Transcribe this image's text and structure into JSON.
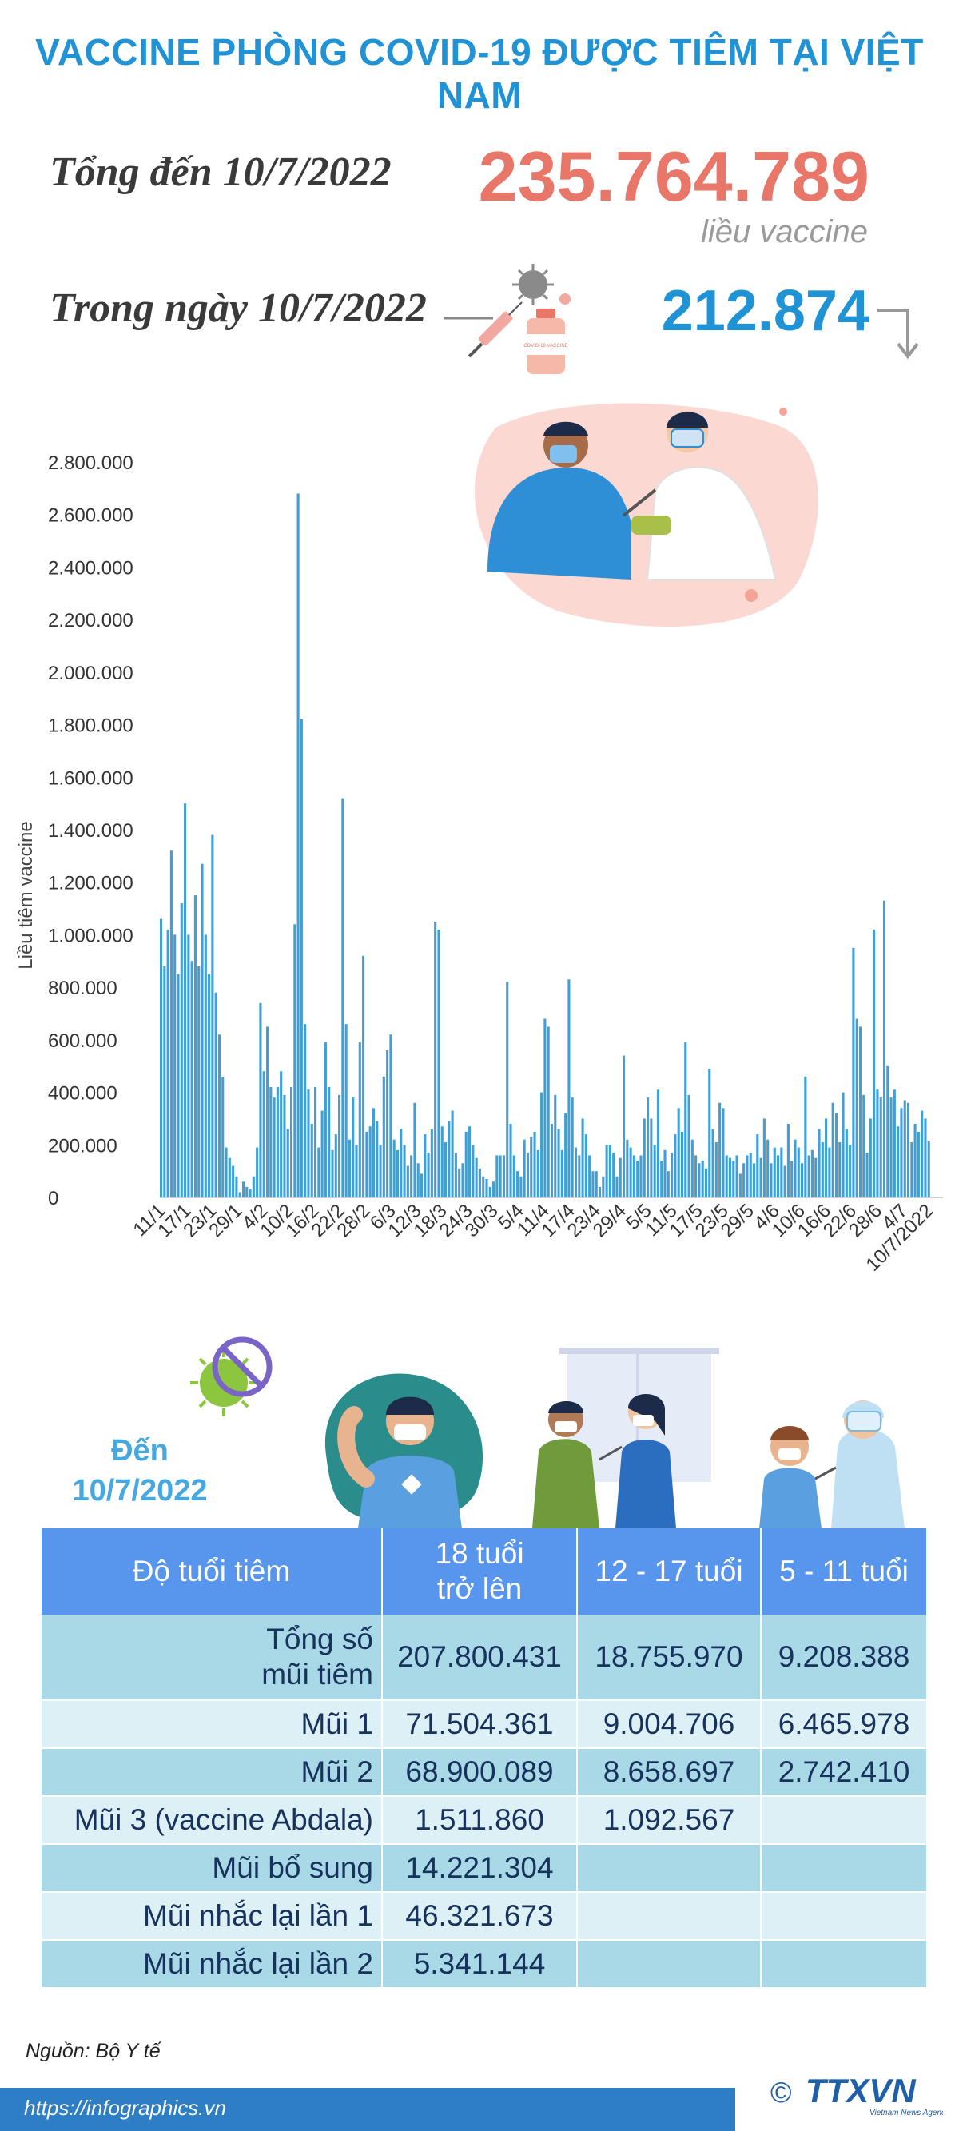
{
  "header": {
    "title": "VACCINE PHÒNG COVID-19 ĐƯỢC TIÊM TẠI VIỆT NAM",
    "total_label": "Tổng đến 10/7/2022",
    "total_value": "235.764.789",
    "total_unit": "liều vaccine",
    "day_label": "Trong ngày 10/7/2022",
    "day_value": "212.874",
    "day_trend_icon": "arrow-down-icon",
    "vial_label": "COVID-19 VACCINE"
  },
  "colors": {
    "title": "#1f93d6",
    "total_value": "#e8776a",
    "day_value": "#1f93d6",
    "bars": "#3f9fd6",
    "table_header": "#5895ec",
    "row_dark": "#a9d8e6",
    "row_light": "#dcf0f6"
  },
  "chart_data": {
    "type": "bar",
    "ylabel": "Liều tiêm vaccine",
    "ylim": [
      0,
      2800000
    ],
    "y_ticks": [
      "0",
      "200.000",
      "400.000",
      "600.000",
      "800.000",
      "1.000.000",
      "1.200.000",
      "1.400.000",
      "1.600.000",
      "1.800.000",
      "2.000.000",
      "2.200.000",
      "2.400.000",
      "2.600.000",
      "2.800.000"
    ],
    "x_tick_labels": [
      "11/1",
      "17/1",
      "23/1",
      "29/1",
      "4/2",
      "10/2",
      "16/2",
      "22/2",
      "28/2",
      "6/3",
      "12/3",
      "18/3",
      "24/3",
      "30/3",
      "5/4",
      "11/4",
      "17/4",
      "23/4",
      "29/4",
      "5/5",
      "11/5",
      "17/5",
      "23/5",
      "29/5",
      "4/6",
      "10/6",
      "16/6",
      "22/6",
      "28/6",
      "4/7",
      "10/7/2022"
    ],
    "grid": false,
    "values": [
      1060000,
      880000,
      1020000,
      1320000,
      1000000,
      850000,
      1120000,
      1500000,
      1000000,
      900000,
      1150000,
      880000,
      1270000,
      1000000,
      850000,
      1380000,
      780000,
      620000,
      460000,
      190000,
      150000,
      120000,
      80000,
      20000,
      60000,
      40000,
      30000,
      80000,
      190000,
      740000,
      480000,
      650000,
      420000,
      380000,
      420000,
      480000,
      390000,
      260000,
      420000,
      1040000,
      2680000,
      1820000,
      660000,
      410000,
      280000,
      420000,
      190000,
      330000,
      590000,
      420000,
      180000,
      240000,
      390000,
      1520000,
      660000,
      220000,
      380000,
      200000,
      590000,
      920000,
      250000,
      270000,
      340000,
      290000,
      200000,
      460000,
      560000,
      620000,
      220000,
      180000,
      260000,
      200000,
      120000,
      160000,
      360000,
      130000,
      90000,
      240000,
      170000,
      260000,
      1050000,
      1020000,
      270000,
      210000,
      290000,
      330000,
      170000,
      110000,
      130000,
      250000,
      270000,
      200000,
      150000,
      110000,
      80000,
      70000,
      40000,
      60000,
      160000,
      160000,
      160000,
      820000,
      280000,
      160000,
      100000,
      80000,
      220000,
      170000,
      230000,
      250000,
      180000,
      400000,
      680000,
      650000,
      280000,
      390000,
      260000,
      180000,
      320000,
      830000,
      380000,
      190000,
      160000,
      300000,
      240000,
      160000,
      100000,
      100000,
      40000,
      80000,
      200000,
      200000,
      170000,
      80000,
      150000,
      540000,
      220000,
      190000,
      160000,
      140000,
      160000,
      300000,
      380000,
      300000,
      200000,
      410000,
      140000,
      180000,
      100000,
      170000,
      240000,
      340000,
      250000,
      590000,
      390000,
      220000,
      160000,
      130000,
      140000,
      110000,
      490000,
      260000,
      210000,
      360000,
      340000,
      160000,
      150000,
      140000,
      160000,
      90000,
      130000,
      160000,
      170000,
      130000,
      240000,
      150000,
      300000,
      220000,
      130000,
      190000,
      160000,
      190000,
      120000,
      280000,
      140000,
      220000,
      190000,
      130000,
      460000,
      160000,
      180000,
      150000,
      260000,
      210000,
      300000,
      190000,
      360000,
      320000,
      210000,
      400000,
      260000,
      200000,
      950000,
      680000,
      650000,
      390000,
      170000,
      300000,
      1020000,
      410000,
      380000,
      1130000,
      500000,
      380000,
      410000,
      270000,
      340000,
      370000,
      360000,
      210000,
      280000,
      250000,
      330000,
      300000,
      212874
    ]
  },
  "table": {
    "since_label": "Đến",
    "since_date": "10/7/2022",
    "headers": {
      "age": "Độ tuổi tiêm",
      "adult_line1": "18 tuổi",
      "adult_line2": "trở lên",
      "teen": "12 - 17 tuổi",
      "child": "5 - 11 tuổi"
    },
    "rows": [
      {
        "label_line1": "Tổng số",
        "label_line2": "mũi tiêm",
        "adult": "207.800.431",
        "teen": "18.755.970",
        "child": "9.208.388"
      },
      {
        "label": "Mũi 1",
        "adult": "71.504.361",
        "teen": "9.004.706",
        "child": "6.465.978"
      },
      {
        "label": "Mũi 2",
        "adult": "68.900.089",
        "teen": "8.658.697",
        "child": "2.742.410"
      },
      {
        "label": "Mũi 3 (vaccine Abdala)",
        "adult": "1.511.860",
        "teen": "1.092.567",
        "child": ""
      },
      {
        "label": "Mũi bổ sung",
        "adult": "14.221.304",
        "teen": "",
        "child": ""
      },
      {
        "label": "Mũi nhắc lại lần 1",
        "adult": "46.321.673",
        "teen": "",
        "child": ""
      },
      {
        "label": "Mũi nhắc lại lần 2",
        "adult": "5.341.144",
        "teen": "",
        "child": ""
      }
    ]
  },
  "footer": {
    "source": "Nguồn: Bộ Y tế",
    "url": "https://infographics.vn",
    "logo": "TTXVN",
    "logo_sub": "Vietnam News Agency",
    "copyright": "©"
  }
}
